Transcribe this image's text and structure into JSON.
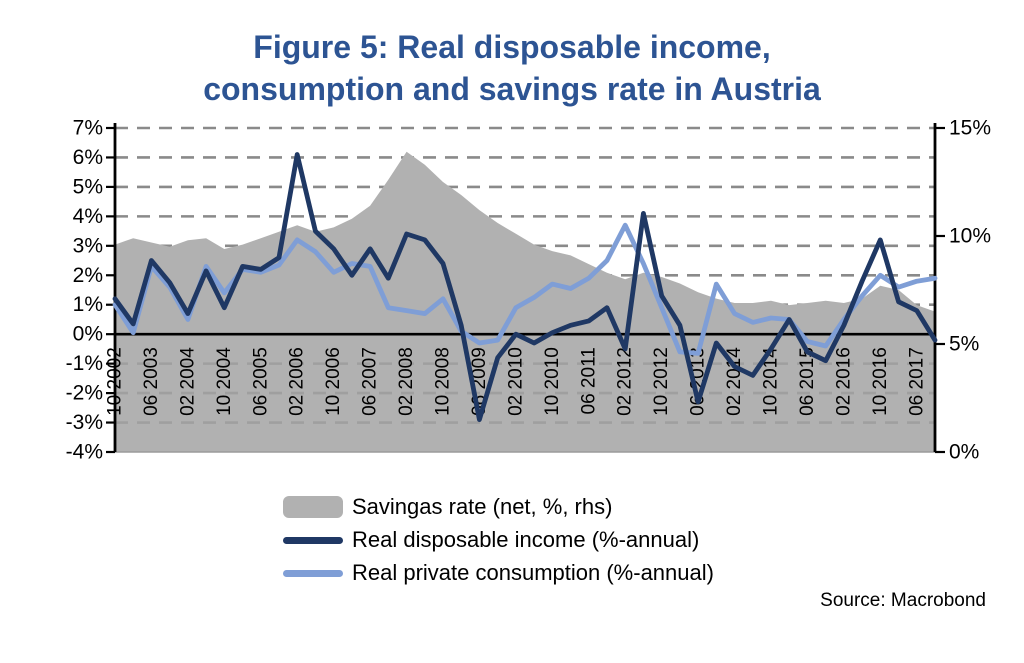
{
  "title": {
    "line1": "Figure 5: Real disposable income,",
    "line2": "consumption and savings rate in Austria"
  },
  "source": "Source: Macrobond",
  "colors": {
    "title": "#2d5493",
    "grid": "#8a8a8a",
    "zero_line": "#000000",
    "axis": "#000000",
    "savings_area": "#b1b1b1",
    "income_line": "#1f3864",
    "consumption_line": "#7f9ed6"
  },
  "chart_data": {
    "type": "line",
    "subtype": "area+line combo, dual axis",
    "grid": {
      "style": "dashed",
      "values": [
        7,
        6,
        5,
        4,
        3,
        2,
        1,
        -1,
        -2,
        -3
      ],
      "color": "#8a8a8a"
    },
    "legend_position": "bottom",
    "left_axis": {
      "ticks": [
        "7%",
        "6%",
        "5%",
        "4%",
        "3%",
        "2%",
        "1%",
        "0%",
        "-1%",
        "-2%",
        "-3%",
        "-4%"
      ],
      "values": [
        7,
        6,
        5,
        4,
        3,
        2,
        1,
        0,
        -1,
        -2,
        -3,
        -4
      ],
      "min": -4,
      "max": 7
    },
    "right_axis": {
      "ticks": [
        "15%",
        "10%",
        "5%",
        "0%"
      ],
      "values": [
        15,
        10,
        5,
        0
      ],
      "min": 0,
      "max": 15
    },
    "x_tick_labels": [
      "10 2002",
      "06 2003",
      "02 2004",
      "10 2004",
      "06 2005",
      "02 2006",
      "10 2006",
      "06 2007",
      "02 2008",
      "10 2008",
      "06 2009",
      "02 2010",
      "10 2010",
      "06 2011",
      "02 2012",
      "10 2012",
      "06 2013",
      "02 2014",
      "10 2014",
      "06 2015",
      "02 2016",
      "10 2016",
      "06 2017"
    ],
    "categories": [
      "10 2002",
      "02 2003",
      "06 2003",
      "10 2003",
      "02 2004",
      "06 2004",
      "10 2004",
      "02 2005",
      "06 2005",
      "10 2005",
      "02 2006",
      "06 2006",
      "10 2006",
      "02 2007",
      "06 2007",
      "10 2007",
      "02 2008",
      "06 2008",
      "10 2008",
      "02 2009",
      "06 2009",
      "10 2009",
      "02 2010",
      "06 2010",
      "10 2010",
      "02 2011",
      "06 2011",
      "10 2011",
      "02 2012",
      "06 2012",
      "10 2012",
      "02 2013",
      "06 2013",
      "10 2013",
      "02 2014",
      "06 2014",
      "10 2014",
      "02 2015",
      "06 2015",
      "10 2015",
      "02 2016",
      "06 2016",
      "10 2016",
      "02 2017",
      "06 2017",
      "10 2017"
    ],
    "series": [
      {
        "name": "Savingas rate (net, %, rhs)",
        "type": "area",
        "axis": "right",
        "color": "#b1b1b1",
        "values": [
          9.6,
          9.9,
          9.7,
          9.5,
          9.8,
          9.9,
          9.4,
          9.6,
          9.9,
          10.2,
          10.5,
          10.2,
          10.4,
          10.8,
          11.4,
          12.6,
          13.9,
          13.3,
          12.5,
          11.9,
          11.2,
          10.6,
          10.1,
          9.6,
          9.3,
          9.1,
          8.7,
          8.3,
          8.0,
          8.3,
          8.1,
          7.8,
          7.4,
          7.1,
          6.9,
          6.9,
          7.0,
          6.8,
          6.9,
          7.0,
          6.9,
          7.1,
          7.7,
          7.5,
          6.8,
          6.5
        ]
      },
      {
        "name": "Real disposable income (%-annual)",
        "type": "line",
        "axis": "left",
        "color": "#1f3864",
        "values": [
          1.2,
          0.35,
          2.5,
          1.75,
          0.7,
          2.15,
          0.9,
          2.3,
          2.2,
          2.6,
          6.1,
          3.5,
          2.9,
          2.0,
          2.9,
          1.9,
          3.4,
          3.2,
          2.4,
          0.3,
          -2.9,
          -0.8,
          0.0,
          -0.3,
          0.05,
          0.3,
          0.45,
          0.9,
          -0.5,
          4.1,
          1.3,
          0.3,
          -2.3,
          -0.3,
          -1.1,
          -1.4,
          -0.5,
          0.5,
          -0.6,
          -0.9,
          0.3,
          1.8,
          3.2,
          1.1,
          0.8,
          -0.2
        ]
      },
      {
        "name": "Real private consumption (%-annual)",
        "type": "line",
        "axis": "left",
        "color": "#7f9ed6",
        "values": [
          1.0,
          0.05,
          2.3,
          1.6,
          0.5,
          2.3,
          1.4,
          2.2,
          2.1,
          2.35,
          3.2,
          2.8,
          2.1,
          2.4,
          2.3,
          0.9,
          0.8,
          0.7,
          1.2,
          0.1,
          -0.3,
          -0.2,
          0.9,
          1.25,
          1.7,
          1.55,
          1.9,
          2.5,
          3.7,
          2.4,
          0.9,
          -0.6,
          -0.65,
          1.7,
          0.7,
          0.4,
          0.55,
          0.5,
          -0.25,
          -0.4,
          0.5,
          1.3,
          2.0,
          1.6,
          1.8,
          1.9
        ]
      }
    ]
  },
  "legend": {
    "items": [
      {
        "label": "Savingas rate (net, %, rhs)"
      },
      {
        "label": "Real disposable income (%-annual)"
      },
      {
        "label": "Real private consumption (%-annual)"
      }
    ]
  }
}
